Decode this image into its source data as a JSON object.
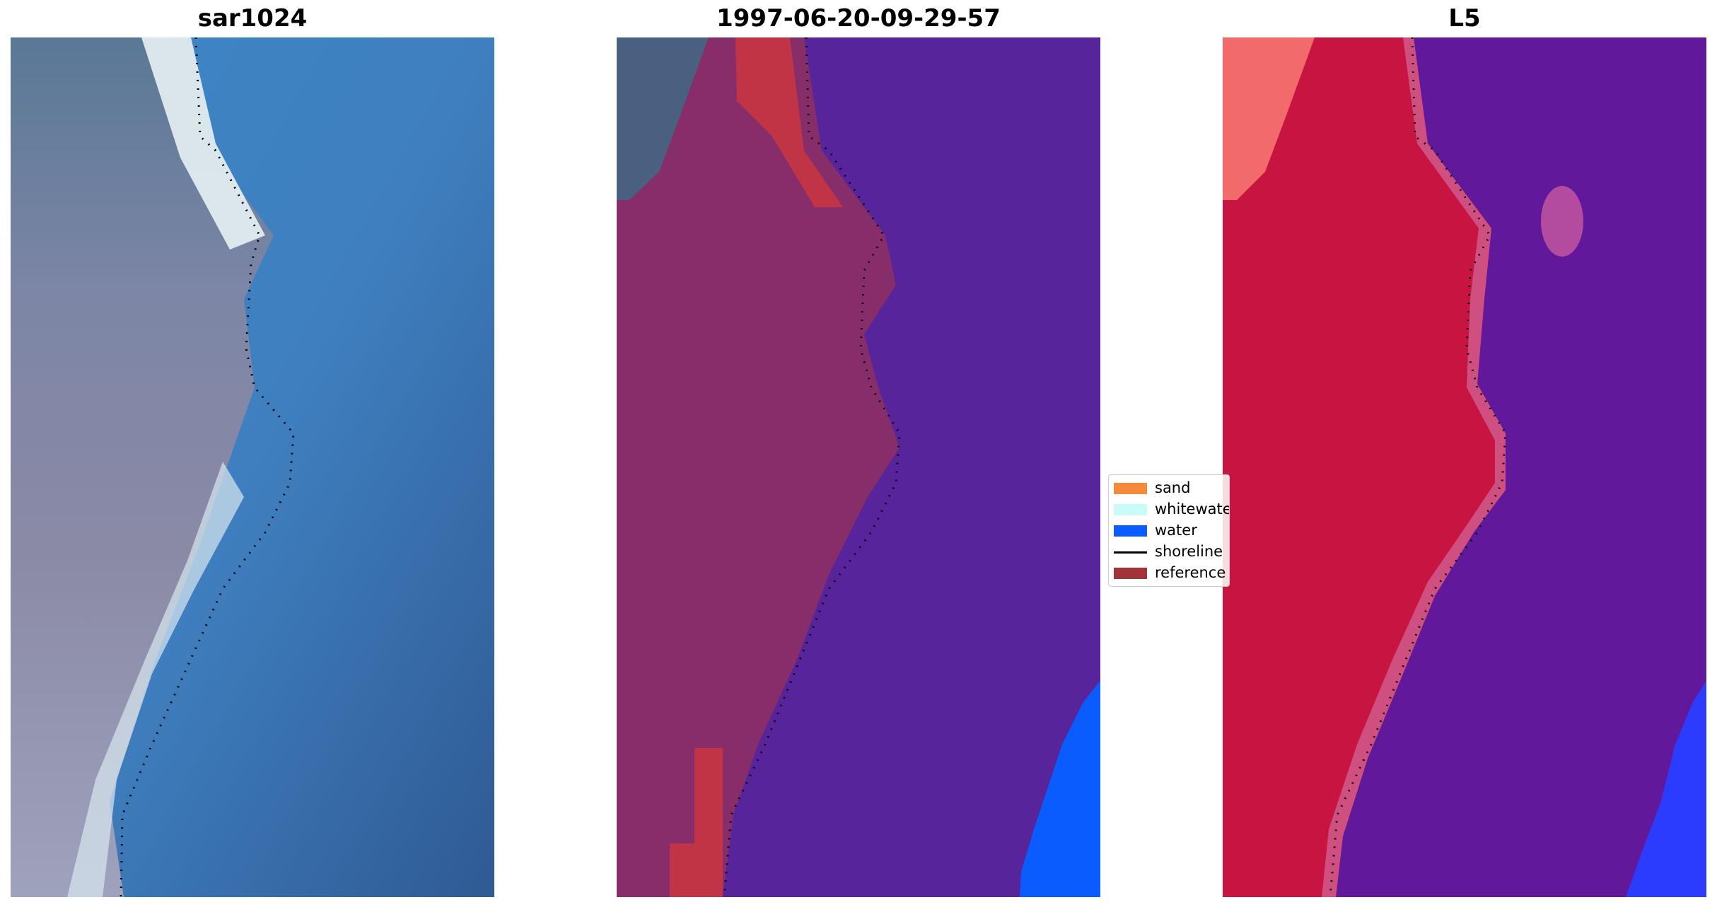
{
  "panels": [
    {
      "title": "sar1024",
      "image": "satellite-rgb-image"
    },
    {
      "title": "1997-06-20-09-29-57",
      "image": "classified-overlay-image"
    },
    {
      "title": "L5",
      "image": "false-color-image"
    }
  ],
  "legend": {
    "items": [
      {
        "label": "sand",
        "color": "#f58a3a",
        "kind": "patch"
      },
      {
        "label": "whitewater",
        "color": "#c9fbfa",
        "kind": "patch"
      },
      {
        "label": "water",
        "color": "#0a5cff",
        "kind": "patch"
      },
      {
        "label": "shoreline",
        "color": "#000000",
        "kind": "line"
      },
      {
        "label": "reference",
        "color": "#a3323a",
        "kind": "patch"
      }
    ]
  },
  "colors": {
    "sar_land": "#7a8098",
    "sar_water": "#3a78b8",
    "class_land": "#862d6a",
    "class_water": "#57249c",
    "class_reference": "#c03446",
    "class_water_blue": "#0a5cff",
    "l5_land": "#c81440",
    "l5_water": "#62189a",
    "l5_blue": "#2c3cff",
    "shoreline": "#000000"
  }
}
